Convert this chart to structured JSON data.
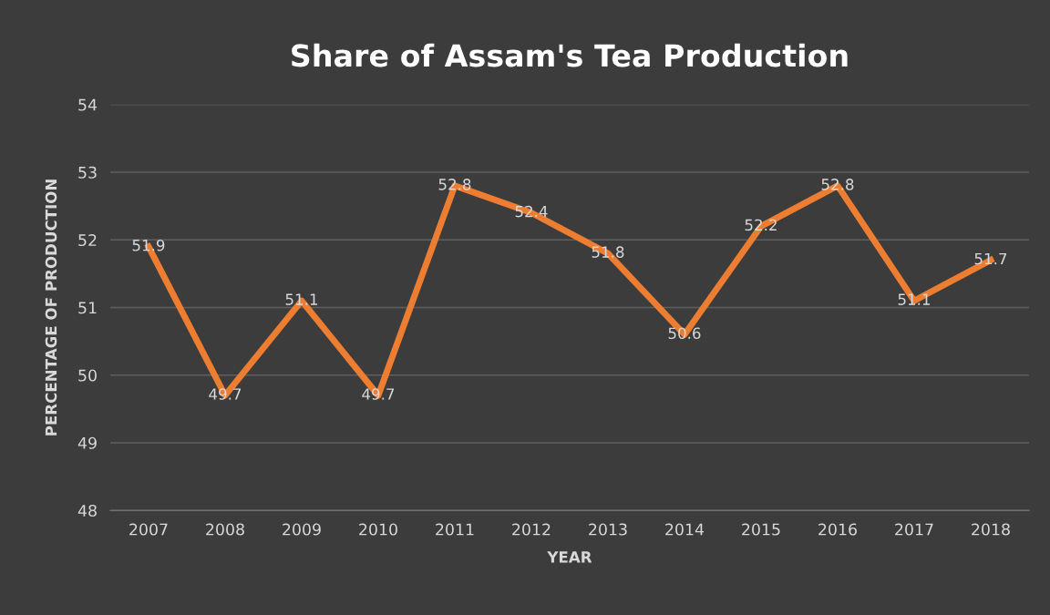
{
  "chart_data": {
    "type": "line",
    "title": "Share of Assam's Tea Production",
    "xlabel": "YEAR",
    "ylabel": "PERCENTAGE OF PRODUCTION",
    "categories": [
      "2007",
      "2008",
      "2009",
      "2010",
      "2011",
      "2012",
      "2013",
      "2014",
      "2015",
      "2016",
      "2017",
      "2018"
    ],
    "series": [
      {
        "color": "#ed7d31",
        "values": [
          51.9,
          49.7,
          51.1,
          49.7,
          52.8,
          52.4,
          51.8,
          50.6,
          52.2,
          52.8,
          51.1,
          51.7
        ]
      }
    ],
    "ylim": [
      48,
      54
    ],
    "yticks": [
      48,
      49,
      50,
      51,
      52,
      53,
      54
    ],
    "grid": "y",
    "data_labels": true,
    "marker": "none",
    "line_style": "solid",
    "legend": false
  }
}
